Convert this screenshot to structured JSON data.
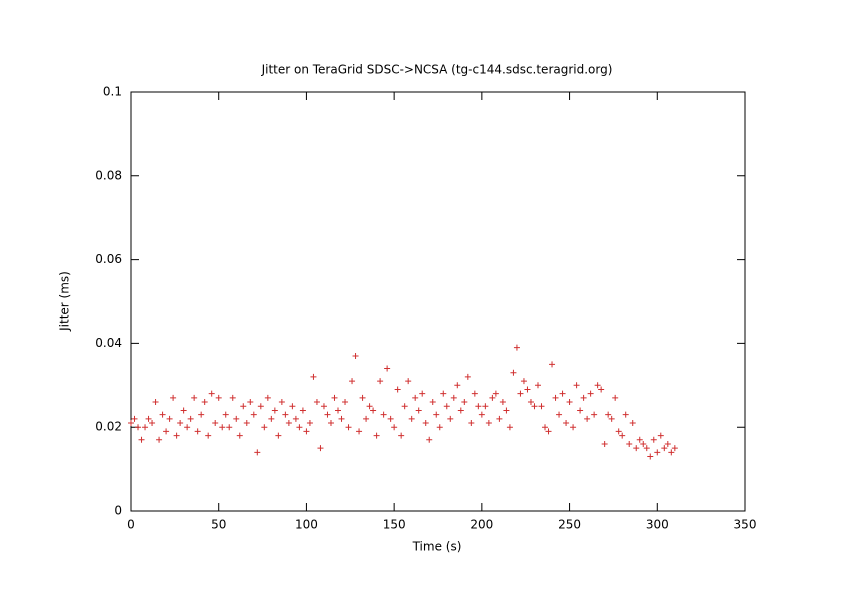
{
  "chart_data": {
    "type": "scatter",
    "title": "Jitter on TeraGrid SDSC->NCSA (tg-c144.sdsc.teragrid.org)",
    "xlabel": "Time (s)",
    "ylabel": "Jitter (ms)",
    "xlim": [
      0,
      350
    ],
    "xticks": [
      0,
      50,
      100,
      150,
      200,
      250,
      300,
      350
    ],
    "ylim": [
      0,
      0.1
    ],
    "yticks": [
      0,
      0.02,
      0.04,
      0.06,
      0.08,
      0.1
    ],
    "color": "#d03030",
    "x": [
      0,
      2,
      4,
      6,
      8,
      10,
      12,
      14,
      16,
      18,
      20,
      22,
      24,
      26,
      28,
      30,
      32,
      34,
      36,
      38,
      40,
      42,
      44,
      46,
      48,
      50,
      52,
      54,
      56,
      58,
      60,
      62,
      64,
      66,
      68,
      70,
      72,
      74,
      76,
      78,
      80,
      82,
      84,
      86,
      88,
      90,
      92,
      94,
      96,
      98,
      100,
      102,
      104,
      106,
      108,
      110,
      112,
      114,
      116,
      118,
      120,
      122,
      124,
      126,
      128,
      130,
      132,
      134,
      136,
      138,
      140,
      142,
      144,
      146,
      148,
      150,
      152,
      154,
      156,
      158,
      160,
      162,
      164,
      166,
      168,
      170,
      172,
      174,
      176,
      178,
      180,
      182,
      184,
      186,
      188,
      190,
      192,
      194,
      196,
      198,
      200,
      202,
      204,
      206,
      208,
      210,
      212,
      214,
      216,
      218,
      220,
      222,
      224,
      226,
      228,
      230,
      232,
      234,
      236,
      238,
      240,
      242,
      244,
      246,
      248,
      250,
      252,
      254,
      256,
      258,
      260,
      262,
      264,
      266,
      268,
      270,
      272,
      274,
      276,
      278,
      280,
      282,
      284,
      286,
      288,
      290,
      292,
      294,
      296,
      298,
      300,
      302,
      304,
      306,
      308,
      310
    ],
    "values": [
      0.021,
      0.022,
      0.02,
      0.017,
      0.02,
      0.022,
      0.021,
      0.026,
      0.017,
      0.023,
      0.019,
      0.022,
      0.027,
      0.018,
      0.021,
      0.024,
      0.02,
      0.022,
      0.027,
      0.019,
      0.023,
      0.026,
      0.018,
      0.028,
      0.021,
      0.027,
      0.02,
      0.023,
      0.02,
      0.027,
      0.022,
      0.018,
      0.025,
      0.021,
      0.026,
      0.023,
      0.014,
      0.025,
      0.02,
      0.027,
      0.022,
      0.024,
      0.018,
      0.026,
      0.023,
      0.021,
      0.025,
      0.022,
      0.02,
      0.024,
      0.019,
      0.021,
      0.032,
      0.026,
      0.015,
      0.025,
      0.023,
      0.021,
      0.027,
      0.024,
      0.022,
      0.026,
      0.02,
      0.031,
      0.037,
      0.019,
      0.027,
      0.022,
      0.025,
      0.024,
      0.018,
      0.031,
      0.023,
      0.034,
      0.022,
      0.02,
      0.029,
      0.018,
      0.025,
      0.031,
      0.022,
      0.027,
      0.024,
      0.028,
      0.021,
      0.017,
      0.026,
      0.023,
      0.02,
      0.028,
      0.025,
      0.022,
      0.027,
      0.03,
      0.024,
      0.026,
      0.032,
      0.021,
      0.028,
      0.025,
      0.023,
      0.025,
      0.021,
      0.027,
      0.028,
      0.022,
      0.026,
      0.024,
      0.02,
      0.033,
      0.039,
      0.028,
      0.031,
      0.029,
      0.026,
      0.025,
      0.03,
      0.025,
      0.02,
      0.019,
      0.035,
      0.027,
      0.023,
      0.028,
      0.021,
      0.026,
      0.02,
      0.03,
      0.024,
      0.027,
      0.022,
      0.028,
      0.023,
      0.03,
      0.029,
      0.016,
      0.023,
      0.022,
      0.027,
      0.019,
      0.018,
      0.023,
      0.016,
      0.021,
      0.015,
      0.017,
      0.016,
      0.015,
      0.013,
      0.017,
      0.014,
      0.018,
      0.015,
      0.016,
      0.014,
      0.015
    ]
  }
}
